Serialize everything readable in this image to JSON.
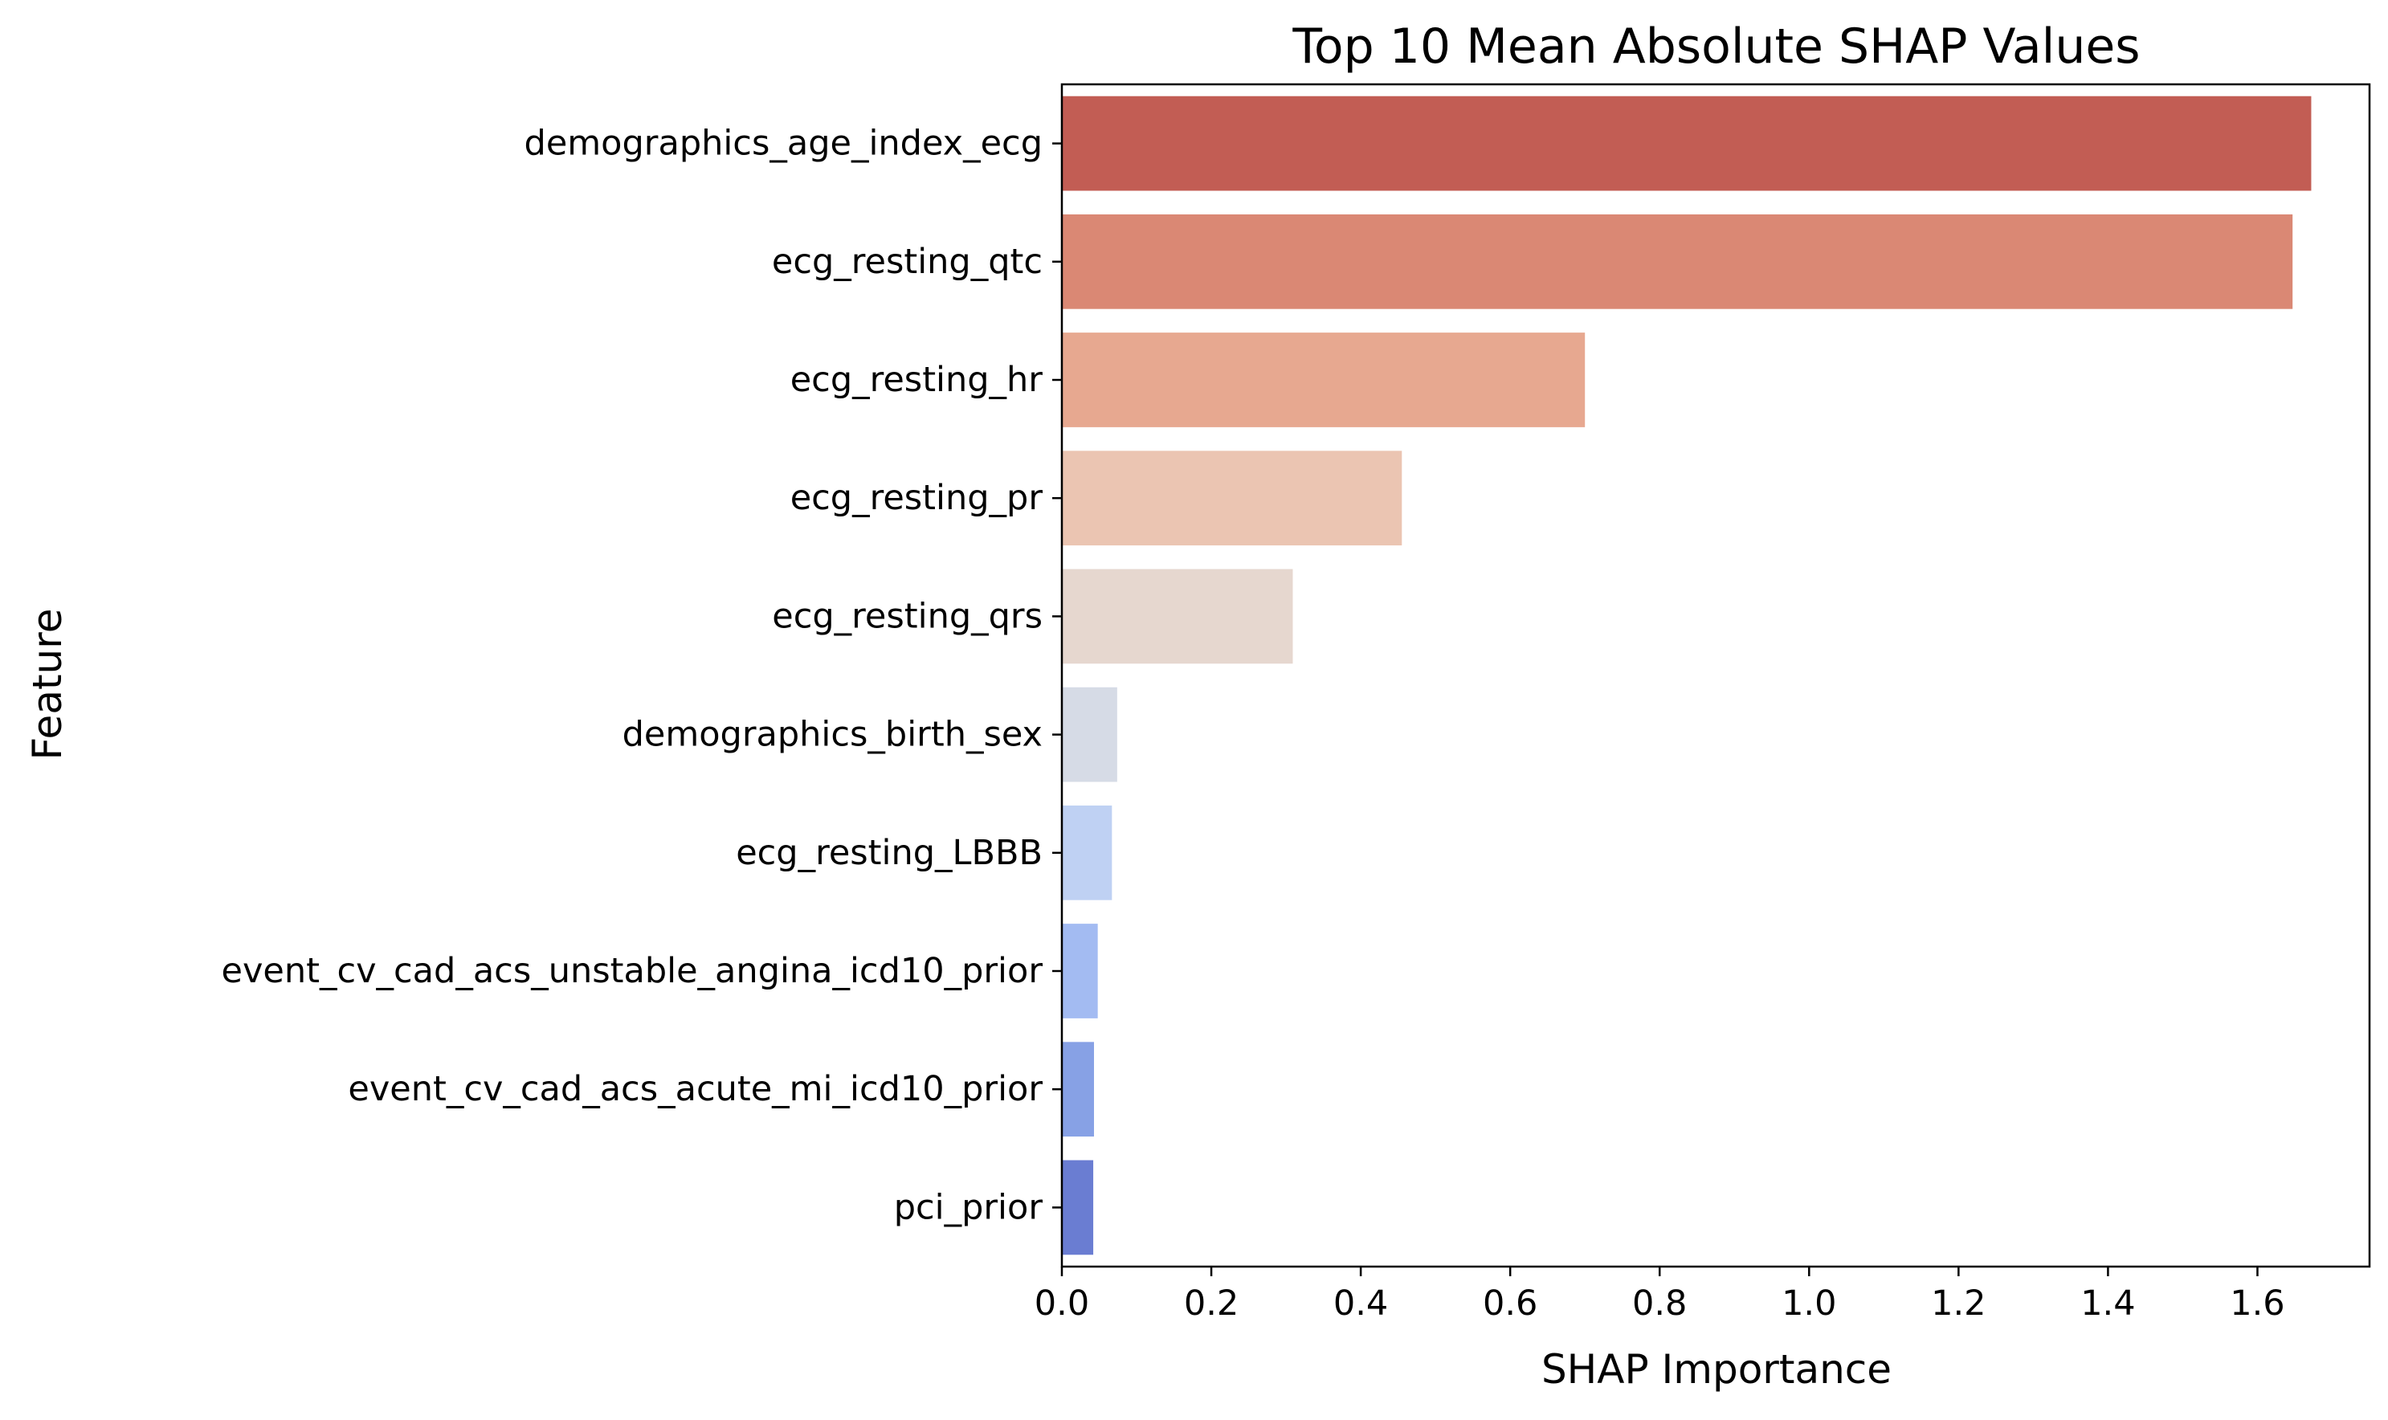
{
  "chart_data": {
    "type": "bar",
    "orientation": "horizontal",
    "title": "Top 10 Mean Absolute SHAP Values",
    "xlabel": "SHAP Importance",
    "ylabel": "Feature",
    "xlim": [
      0,
      1.75
    ],
    "xticks": [
      0.0,
      0.2,
      0.4,
      0.6,
      0.8,
      1.0,
      1.2,
      1.4,
      1.6
    ],
    "xtick_labels": [
      "0.0",
      "0.2",
      "0.4",
      "0.6",
      "0.8",
      "1.0",
      "1.2",
      "1.4",
      "1.6"
    ],
    "grid": false,
    "legend": "none",
    "categories": [
      "demographics_age_index_ecg",
      "ecg_resting_qtc",
      "ecg_resting_hr",
      "ecg_resting_pr",
      "ecg_resting_qrs",
      "demographics_birth_sex",
      "ecg_resting_LBBB",
      "event_cv_cad_acs_unstable_angina_icd10_prior",
      "event_cv_cad_acs_acute_mi_icd10_prior",
      "pci_prior"
    ],
    "values": [
      1.672,
      1.647,
      0.7,
      0.455,
      0.309,
      0.074,
      0.067,
      0.048,
      0.043,
      0.042
    ],
    "colors": [
      "#c25d54",
      "#da8874",
      "#e7a890",
      "#ebc5b2",
      "#e6d7cf",
      "#d6dbe6",
      "#bfd1f3",
      "#a3bbf2",
      "#87a1e5",
      "#6a7dd2"
    ]
  }
}
